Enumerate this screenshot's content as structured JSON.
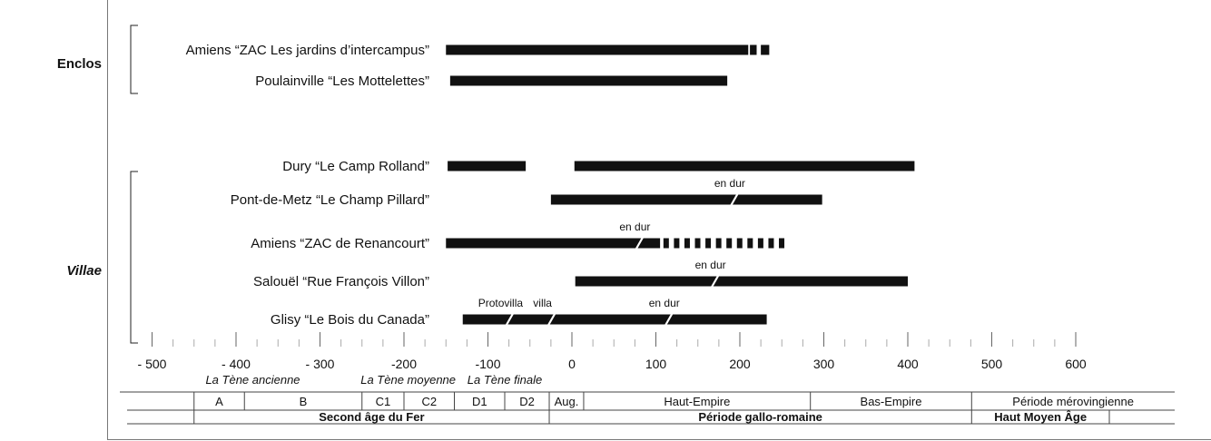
{
  "chart_data": {
    "type": "timeline",
    "x_axis": {
      "range": [
        -500,
        600
      ],
      "ticks": [
        -500,
        -400,
        -300,
        -200,
        -100,
        0,
        100,
        200,
        300,
        400,
        500,
        600
      ],
      "tick_labels": [
        "- 500",
        "- 400",
        "- 300",
        "-200",
        "-100",
        "0",
        "100",
        "200",
        "300",
        "400",
        "500",
        "600"
      ]
    },
    "groups": [
      {
        "label": "Enclos",
        "italic": false,
        "rows": [
          0,
          1
        ]
      },
      {
        "label": "Villae",
        "italic": true,
        "rows": [
          2,
          3,
          4,
          5,
          6
        ]
      }
    ],
    "rows": [
      {
        "label": "Amiens “ZAC Les jardins d’intercampus”",
        "segments": [
          {
            "start": -150,
            "end": 210
          },
          {
            "start": 212,
            "end": 220
          },
          {
            "start": 225,
            "end": 235
          }
        ],
        "annotations": []
      },
      {
        "label": "Poulainville “Les Mottelettes”",
        "segments": [
          {
            "start": -145,
            "end": 185
          }
        ],
        "annotations": []
      },
      {
        "label": "Dury “Le Camp Rolland”",
        "segments": [
          {
            "start": -148,
            "end": -55
          },
          {
            "start": 3,
            "end": 408
          }
        ],
        "annotations": []
      },
      {
        "label": "Pont-de-Metz “Le Champ Pillard”",
        "segments": [
          {
            "start": -25,
            "end": 298
          }
        ],
        "annotations": [
          {
            "text": "en dur",
            "x": 188
          }
        ]
      },
      {
        "label": "Amiens “ZAC de Renancourt”",
        "segments": [
          {
            "start": -150,
            "end": 105
          }
        ],
        "dashed": [
          {
            "start": 105,
            "end": 260
          }
        ],
        "annotations": [
          {
            "text": "en dur",
            "x": 75
          }
        ]
      },
      {
        "label": "Salouël “Rue François Villon”",
        "segments": [
          {
            "start": 4,
            "end": 400
          }
        ],
        "annotations": [
          {
            "text": "en dur",
            "x": 165
          }
        ]
      },
      {
        "label": "Glisy “Le Bois du Canada”",
        "segments": [
          {
            "start": -130,
            "end": 232
          }
        ],
        "annotations": [
          {
            "text": "Protovilla",
            "x": -85
          },
          {
            "text": "villa",
            "x": -35
          },
          {
            "text": "en dur",
            "x": 110
          }
        ]
      }
    ],
    "periods": [
      {
        "label": "La Tène ancienne",
        "x": -380
      },
      {
        "label": "La Tène moyenne",
        "x": -195
      },
      {
        "label": "La Tène finale",
        "x": -80
      }
    ],
    "phases": [
      {
        "label": "",
        "start": -550,
        "end": -450
      },
      {
        "label": "A",
        "start": -450,
        "end": -390
      },
      {
        "label": "B",
        "start": -390,
        "end": -250
      },
      {
        "label": "C1",
        "start": -250,
        "end": -200
      },
      {
        "label": "C2",
        "start": -200,
        "end": -140
      },
      {
        "label": "D1",
        "start": -140,
        "end": -80
      },
      {
        "label": "D2",
        "start": -80,
        "end": -27
      },
      {
        "label": "Aug.",
        "start": -27,
        "end": 14
      },
      {
        "label": "Haut-Empire",
        "start": 14,
        "end": 284
      },
      {
        "label": "Bas-Empire",
        "start": 284,
        "end": 476
      },
      {
        "label": "Période mérovingienne",
        "start": 476,
        "end": 720
      }
    ],
    "ages": [
      {
        "label": "Second âge du Fer",
        "start": -450,
        "end": -27
      },
      {
        "label": "Période gallo-romaine",
        "start": -27,
        "end": 476
      },
      {
        "label": "Haut Moyen Âge",
        "start": 476,
        "end": 640
      }
    ],
    "grid": false
  }
}
